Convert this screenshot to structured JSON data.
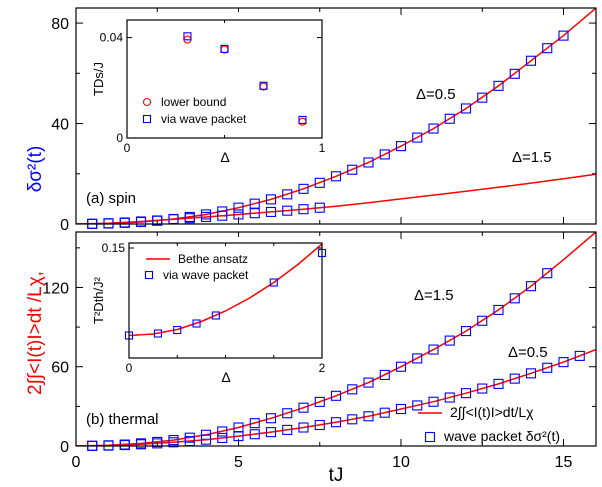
{
  "ylabel_red": "2∫∫<I(t)I>dt /Lχ,",
  "ylabel_blue": "δσ²(t)",
  "chart_data": [
    {
      "type": "line",
      "panel": "top",
      "panel_label": "(a) spin",
      "xlim": [
        0,
        16
      ],
      "ylim": [
        0,
        86
      ],
      "yticks": [
        0,
        40,
        80
      ],
      "annotations": [
        "Δ=0.5",
        "Δ=1.5"
      ],
      "series": [
        {
          "name": "Δ=0.5 lower bound",
          "style": "red-line",
          "x": [
            0,
            1,
            2,
            3,
            4,
            5,
            6,
            7,
            8,
            9,
            10,
            11,
            12,
            13,
            14,
            15,
            16
          ],
          "y": [
            0,
            0.2,
            0.8,
            2,
            3.8,
            6.5,
            9.8,
            14,
            19,
            24.5,
            31,
            38,
            46,
            55,
            65,
            75,
            86
          ]
        },
        {
          "name": "Δ=0.5 wave packet",
          "style": "blue-squares",
          "x": [
            0.5,
            1,
            1.5,
            2,
            2.5,
            3,
            3.5,
            4,
            4.5,
            5,
            5.5,
            6,
            6.5,
            7,
            7.5,
            8,
            8.5,
            9,
            9.5,
            10,
            10.5,
            11,
            11.5,
            12,
            12.5,
            13,
            13.5,
            14,
            14.5,
            15
          ],
          "y": [
            0.05,
            0.2,
            0.45,
            0.8,
            1.3,
            2,
            2.8,
            3.8,
            5,
            6.5,
            8.1,
            9.8,
            11.8,
            14,
            16.4,
            19,
            21.6,
            24.5,
            27.7,
            31,
            34.4,
            38,
            41.9,
            46,
            50.3,
            55,
            59.8,
            65,
            70,
            75
          ]
        },
        {
          "name": "Δ=1.5 lower bound",
          "style": "red-line",
          "x": [
            0,
            1,
            2,
            3,
            4,
            5,
            6,
            7,
            8,
            9,
            10,
            11,
            12,
            13,
            14,
            15,
            16
          ],
          "y": [
            0,
            0.3,
            1,
            1.9,
            2.8,
            3.8,
            4.8,
            5.9,
            7.1,
            8.5,
            10,
            11.5,
            13,
            14.6,
            16.3,
            18,
            19.8
          ]
        },
        {
          "name": "Δ=1.5 wave packet",
          "style": "blue-squares",
          "x": [
            0.5,
            1,
            1.5,
            2,
            2.5,
            3,
            3.5,
            4,
            4.5,
            5,
            5.5,
            6,
            6.5,
            7,
            7.5
          ],
          "y": [
            0.1,
            0.3,
            0.6,
            1,
            1.4,
            1.9,
            2.3,
            2.8,
            3.3,
            3.8,
            4.3,
            4.8,
            5.3,
            5.9,
            6.5
          ]
        }
      ],
      "inset": {
        "xlim": [
          0,
          1
        ],
        "ylim": [
          0,
          0.047
        ],
        "xticks": [
          0,
          1
        ],
        "yticks": [
          0,
          0.04
        ],
        "xlabel": "Δ",
        "ylabel": "TDs/J",
        "legend": [
          {
            "label": "lower bound",
            "marker": "red-circle"
          },
          {
            "label": "via wave packet",
            "marker": "blue-square"
          }
        ],
        "series": [
          {
            "name": "lower bound",
            "style": "red-circles",
            "x": [
              0.31,
              0.5,
              0.7,
              0.9
            ],
            "y": [
              0.0392,
              0.0352,
              0.0205,
              0.0065
            ]
          },
          {
            "name": "via wave packet",
            "style": "blue-squares",
            "x": [
              0.31,
              0.5,
              0.7,
              0.9
            ],
            "y": [
              0.0405,
              0.0355,
              0.0208,
              0.0072
            ]
          }
        ]
      }
    },
    {
      "type": "line",
      "panel": "bottom",
      "panel_label": "(b) thermal",
      "xlim": [
        0,
        16
      ],
      "xticks": [
        0,
        5,
        10,
        15
      ],
      "xlabel": "tJ",
      "ylim": [
        0,
        162
      ],
      "yticks": [
        0,
        60,
        120
      ],
      "annotations": [
        "Δ=1.5",
        "Δ=0.5"
      ],
      "legend": [
        {
          "label": "2∫∫<I(t)I>dt/Lχ",
          "marker": "red-line"
        },
        {
          "label": "wave packet δσ²(t)",
          "marker": "blue-square"
        }
      ],
      "series": [
        {
          "name": "Δ=1.5 current correlation",
          "style": "red-line",
          "x": [
            0,
            1,
            2,
            3,
            4,
            5,
            6,
            7,
            8,
            9,
            10,
            11,
            12,
            13,
            14,
            15,
            16
          ],
          "y": [
            0,
            0.5,
            2,
            4.5,
            8.5,
            14,
            21,
            29,
            38,
            48,
            60,
            73,
            87,
            103,
            121,
            141,
            162
          ]
        },
        {
          "name": "Δ=1.5 wave packet",
          "style": "blue-squares",
          "x": [
            0.5,
            1,
            1.5,
            2,
            2.5,
            3,
            3.5,
            4,
            4.5,
            5,
            5.5,
            6,
            6.5,
            7,
            7.5,
            8,
            8.5,
            9,
            9.5,
            10,
            10.5,
            11,
            11.5,
            12,
            12.5,
            13,
            13.5,
            14,
            14.5
          ],
          "y": [
            0.2,
            0.5,
            1.1,
            2,
            3.1,
            4.5,
            6.3,
            8.5,
            11,
            14,
            17.3,
            21,
            24.8,
            29,
            33.4,
            38,
            42.9,
            48,
            53.8,
            60,
            66.3,
            73,
            79.8,
            87,
            94.8,
            103,
            111.8,
            121,
            130.8
          ]
        },
        {
          "name": "Δ=0.5 current correlation",
          "style": "red-line",
          "x": [
            0,
            1,
            2,
            3,
            4,
            5,
            6,
            7,
            8,
            9,
            10,
            11,
            12,
            13,
            14,
            15,
            16
          ],
          "y": [
            0,
            0.3,
            1.3,
            2.8,
            4.8,
            7.5,
            10.5,
            14,
            18,
            22.5,
            28,
            33.5,
            40,
            47,
            55,
            63.5,
            73
          ]
        },
        {
          "name": "Δ=0.5 wave packet",
          "style": "blue-squares",
          "x": [
            0.5,
            1,
            1.5,
            2,
            2.5,
            3,
            3.5,
            4,
            4.5,
            5,
            5.5,
            6,
            6.5,
            7,
            7.5,
            8,
            8.5,
            9,
            9.5,
            10,
            10.5,
            11,
            11.5,
            12,
            12.5,
            13,
            13.5,
            14,
            14.5,
            15,
            15.5
          ],
          "y": [
            0.1,
            0.3,
            0.7,
            1.3,
            2,
            2.8,
            3.7,
            4.8,
            6.1,
            7.5,
            8.9,
            10.5,
            12.2,
            14,
            15.9,
            18,
            20.2,
            22.5,
            25.2,
            28,
            30.7,
            33.5,
            36.7,
            40,
            43.5,
            47,
            51,
            55,
            59.2,
            63.5,
            68.2
          ]
        }
      ],
      "inset": {
        "xlim": [
          0,
          2
        ],
        "ylim": [
          0.04,
          0.155
        ],
        "xticks": [
          0,
          2
        ],
        "yticks": [
          0.15
        ],
        "xlabel": "Δ",
        "ylabel": "T²Dth/J²",
        "legend": [
          {
            "label": "Bethe ansatz",
            "marker": "red-line"
          },
          {
            "label": "via wave packet",
            "marker": "blue-square"
          }
        ],
        "series": [
          {
            "name": "Bethe ansatz",
            "style": "red-line",
            "x": [
              0,
              0.25,
              0.5,
              0.75,
              1,
              1.25,
              1.5,
              1.75,
              2
            ],
            "y": [
              0.0625,
              0.064,
              0.0685,
              0.0765,
              0.087,
              0.1,
              0.1155,
              0.1335,
              0.154
            ]
          },
          {
            "name": "via wave packet",
            "style": "blue-squares",
            "x": [
              0,
              0.3,
              0.5,
              0.7,
              0.9,
              1.5,
              2
            ],
            "y": [
              0.0625,
              0.0645,
              0.068,
              0.0745,
              0.0825,
              0.1155,
              0.145
            ]
          }
        ]
      }
    }
  ]
}
